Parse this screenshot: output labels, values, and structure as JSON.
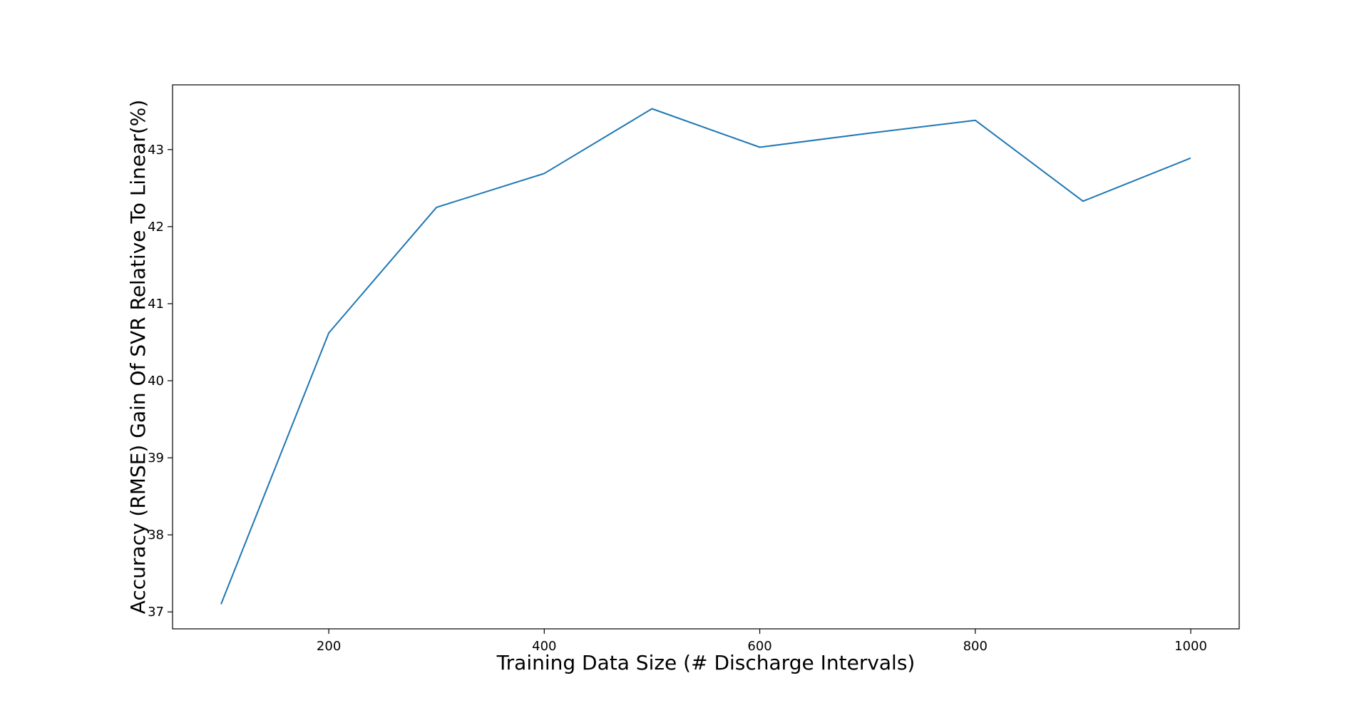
{
  "chart_data": {
    "type": "line",
    "title": "",
    "xlabel": "Training Data Size (# Discharge Intervals)",
    "ylabel": "Accuracy (RMSE) Gain Of SVR Relative To Linear(%)",
    "xlim": [
      55,
      1045
    ],
    "ylim": [
      36.78,
      43.84
    ],
    "xticks": [
      200,
      400,
      600,
      800,
      1000
    ],
    "yticks": [
      37,
      38,
      39,
      40,
      41,
      42,
      43
    ],
    "grid": false,
    "series": [
      {
        "color": "#1f77b4",
        "x": [
          100,
          200,
          300,
          400,
          500,
          600,
          700,
          800,
          900,
          1000
        ],
        "y": [
          37.1,
          40.62,
          42.25,
          42.69,
          43.53,
          43.03,
          43.21,
          43.38,
          42.33,
          42.89
        ]
      }
    ]
  }
}
